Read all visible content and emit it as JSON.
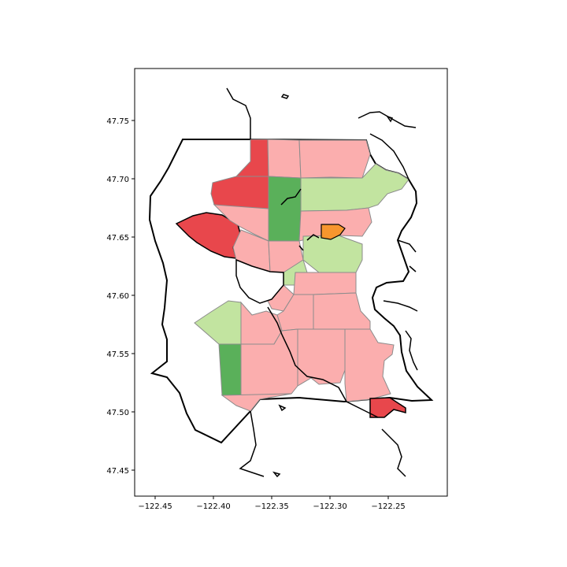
{
  "map": {
    "x_ticks": [
      "−122.45",
      "−122.40",
      "−122.35",
      "−122.30",
      "−122.25"
    ],
    "y_ticks": [
      "47.75",
      "47.70",
      "47.65",
      "47.60",
      "47.55",
      "47.50",
      "47.45"
    ],
    "xlim": [
      -122.47,
      -122.205
    ],
    "ylim": [
      47.425,
      47.795
    ],
    "x_tick_values": [
      -122.45,
      -122.4,
      -122.35,
      -122.3,
      -122.25
    ],
    "y_tick_values": [
      47.75,
      47.7,
      47.65,
      47.6,
      47.55,
      47.5,
      47.45
    ],
    "colors": {
      "light_red": "#fbaeae",
      "red": "#e8474c",
      "dark_green": "#5ab05a",
      "light_green": "#c2e4a0",
      "orange": "#f7962e",
      "outline": "#000000",
      "district_border": "#8c8c8c"
    }
  }
}
